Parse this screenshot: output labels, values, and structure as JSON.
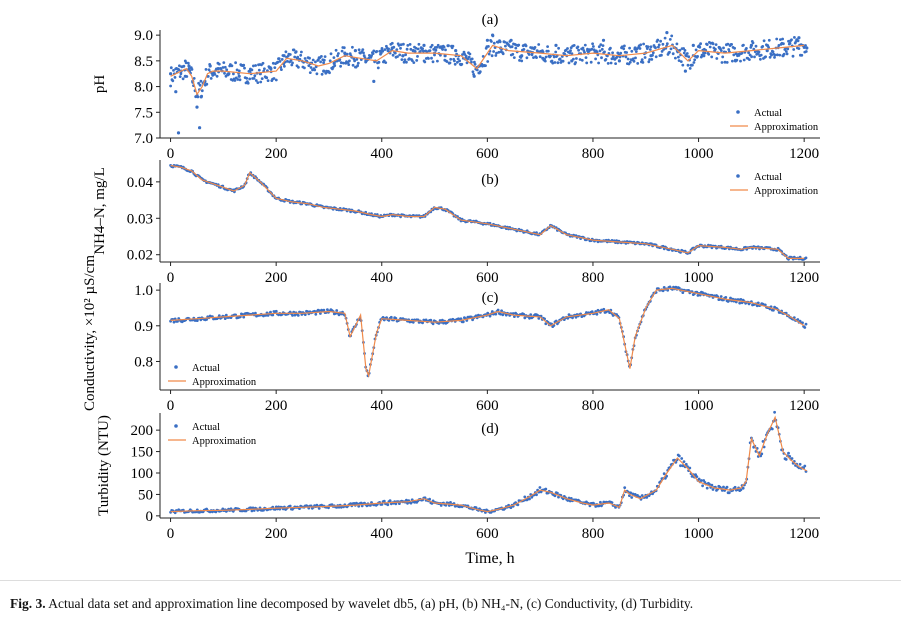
{
  "colors": {
    "actual": "#3a6fc4",
    "approx": "#f08a4b",
    "axis": "#222222"
  },
  "xlabel": "Time, h",
  "caption": {
    "label": "Fig. 3.",
    "text": " Actual data set and approximation line decomposed by wavelet db5, (a) pH, (b) NH₄-N, (c) Conductivity, (d) Turbidity."
  },
  "chart_data": [
    {
      "type": "scatter",
      "panel_label": "(a)",
      "ylabel": "pH",
      "xlim": [
        -20,
        1230
      ],
      "ylim": [
        7.0,
        9.1
      ],
      "xticks": [
        0,
        200,
        400,
        600,
        800,
        1000,
        1200
      ],
      "yticks": [
        7.0,
        7.5,
        8.0,
        8.5,
        9.0
      ],
      "ytick_labels": [
        "7.0",
        "7.5",
        "8.0",
        "8.5",
        "9.0"
      ],
      "legend": {
        "position": "bottom-right",
        "entries": [
          "Actual",
          "Approximation"
        ]
      },
      "approximation": {
        "x": [
          0,
          20,
          30,
          40,
          50,
          60,
          70,
          80,
          100,
          150,
          200,
          220,
          250,
          280,
          300,
          330,
          360,
          390,
          420,
          450,
          500,
          550,
          580,
          590,
          610,
          640,
          700,
          750,
          800,
          850,
          900,
          950,
          980,
          1000,
          1050,
          1100,
          1150,
          1200
        ],
        "y": [
          8.2,
          8.3,
          8.35,
          8.2,
          7.85,
          8.0,
          8.25,
          8.3,
          8.3,
          8.25,
          8.3,
          8.55,
          8.5,
          8.4,
          8.45,
          8.6,
          8.55,
          8.5,
          8.7,
          8.65,
          8.65,
          8.6,
          8.35,
          8.5,
          8.8,
          8.7,
          8.65,
          8.6,
          8.65,
          8.6,
          8.65,
          8.8,
          8.5,
          8.7,
          8.65,
          8.7,
          8.75,
          8.8
        ]
      },
      "actual": {
        "x": [
          0,
          10,
          15,
          20,
          28,
          35,
          42,
          50,
          55,
          58,
          65,
          75,
          90,
          110,
          130,
          150,
          170,
          190,
          215,
          240,
          265,
          290,
          310,
          330,
          350,
          370,
          385,
          400,
          420,
          440,
          460,
          480,
          500,
          520,
          540,
          560,
          575,
          585,
          600,
          610,
          625,
          645,
          665,
          685,
          705,
          730,
          760,
          790,
          820,
          850,
          880,
          910,
          940,
          960,
          975,
          990,
          1010,
          1040,
          1070,
          1100,
          1130,
          1160,
          1190,
          1205
        ],
        "y": [
          8.25,
          7.9,
          7.1,
          8.3,
          8.2,
          8.4,
          8.1,
          7.6,
          7.2,
          7.8,
          8.1,
          8.4,
          8.35,
          8.25,
          8.2,
          8.3,
          8.25,
          8.35,
          8.6,
          8.55,
          8.45,
          8.3,
          8.45,
          8.65,
          8.7,
          8.5,
          8.1,
          8.7,
          8.75,
          8.6,
          8.7,
          8.8,
          8.65,
          8.6,
          8.7,
          8.55,
          8.2,
          8.4,
          8.9,
          9.0,
          8.75,
          8.9,
          8.6,
          8.75,
          8.55,
          8.8,
          8.5,
          8.7,
          8.9,
          8.5,
          8.75,
          8.6,
          9.05,
          8.7,
          8.3,
          8.8,
          8.6,
          8.75,
          8.5,
          8.8,
          8.7,
          8.6,
          8.95,
          8.75
        ]
      }
    },
    {
      "type": "scatter",
      "panel_label": "(b)",
      "ylabel": "NH4–N, mg/L",
      "xlim": [
        -20,
        1230
      ],
      "ylim": [
        0.018,
        0.046
      ],
      "xticks": [
        0,
        200,
        400,
        600,
        800,
        1000,
        1200
      ],
      "yticks": [
        0.02,
        0.03,
        0.04
      ],
      "ytick_labels": [
        "0.02",
        "0.03",
        "0.04"
      ],
      "legend": {
        "position": "top-right",
        "entries": [
          "Actual",
          "Approximation"
        ]
      },
      "approximation": {
        "x": [
          0,
          20,
          40,
          60,
          80,
          100,
          120,
          140,
          150,
          170,
          200,
          230,
          260,
          290,
          320,
          350,
          380,
          400,
          420,
          450,
          480,
          500,
          520,
          550,
          600,
          650,
          700,
          720,
          750,
          800,
          850,
          900,
          950,
          980,
          1000,
          1050,
          1080,
          1100,
          1150,
          1170,
          1200
        ],
        "y": [
          0.0445,
          0.044,
          0.043,
          0.0405,
          0.0395,
          0.0385,
          0.0375,
          0.039,
          0.0425,
          0.04,
          0.0355,
          0.0345,
          0.034,
          0.033,
          0.0325,
          0.032,
          0.031,
          0.0305,
          0.031,
          0.0305,
          0.0305,
          0.033,
          0.0325,
          0.0295,
          0.0285,
          0.027,
          0.0255,
          0.028,
          0.0255,
          0.024,
          0.0235,
          0.023,
          0.0215,
          0.0205,
          0.0225,
          0.022,
          0.0215,
          0.022,
          0.0215,
          0.019,
          0.019
        ]
      }
    },
    {
      "type": "scatter",
      "panel_label": "(c)",
      "ylabel": "Conductivity, ×10² µS/cm",
      "xlim": [
        -20,
        1230
      ],
      "ylim": [
        0.72,
        1.02
      ],
      "xticks": [
        0,
        200,
        400,
        600,
        800,
        1000,
        1200
      ],
      "yticks": [
        0.8,
        0.9,
        1.0
      ],
      "ytick_labels": [
        "0.8",
        "0.9",
        "1.0"
      ],
      "legend": {
        "position": "bottom-left",
        "entries": [
          "Actual",
          "Approximation"
        ]
      },
      "approximation": {
        "x": [
          0,
          50,
          100,
          150,
          200,
          250,
          300,
          330,
          340,
          350,
          360,
          370,
          375,
          390,
          400,
          450,
          500,
          550,
          600,
          620,
          650,
          700,
          720,
          750,
          800,
          830,
          850,
          860,
          870,
          880,
          900,
          920,
          950,
          1000,
          1050,
          1100,
          1150,
          1180,
          1200
        ],
        "y": [
          0.915,
          0.92,
          0.925,
          0.93,
          0.935,
          0.935,
          0.94,
          0.935,
          0.87,
          0.9,
          0.93,
          0.78,
          0.76,
          0.88,
          0.92,
          0.915,
          0.91,
          0.915,
          0.93,
          0.94,
          0.93,
          0.925,
          0.9,
          0.925,
          0.935,
          0.945,
          0.92,
          0.85,
          0.78,
          0.87,
          0.95,
          1.0,
          1.005,
          0.99,
          0.975,
          0.965,
          0.945,
          0.92,
          0.9
        ]
      }
    },
    {
      "type": "scatter",
      "panel_label": "(d)",
      "ylabel": "Turbidity (NTU)",
      "xlim": [
        -20,
        1230
      ],
      "ylim": [
        -5,
        240
      ],
      "xticks": [
        0,
        200,
        400,
        600,
        800,
        1000,
        1200
      ],
      "yticks": [
        0,
        50,
        100,
        150,
        200
      ],
      "ytick_labels": [
        "0",
        "50",
        "100",
        "150",
        "200"
      ],
      "legend": {
        "position": "top-left",
        "entries": [
          "Actual",
          "Approximation"
        ]
      },
      "approximation": {
        "x": [
          0,
          50,
          100,
          150,
          200,
          250,
          300,
          350,
          380,
          400,
          450,
          480,
          500,
          550,
          580,
          600,
          620,
          650,
          680,
          700,
          720,
          750,
          780,
          800,
          830,
          850,
          860,
          870,
          890,
          920,
          940,
          960,
          980,
          1000,
          1030,
          1060,
          1080,
          1090,
          1100,
          1115,
          1130,
          1145,
          1160,
          1175,
          1190,
          1205
        ],
        "y": [
          10,
          12,
          13,
          15,
          18,
          20,
          22,
          25,
          28,
          30,
          33,
          40,
          30,
          25,
          15,
          10,
          15,
          25,
          45,
          60,
          55,
          40,
          30,
          25,
          30,
          20,
          60,
          50,
          40,
          60,
          100,
          135,
          110,
          80,
          65,
          60,
          65,
          80,
          180,
          140,
          190,
          230,
          150,
          130,
          115,
          105
        ]
      }
    }
  ]
}
